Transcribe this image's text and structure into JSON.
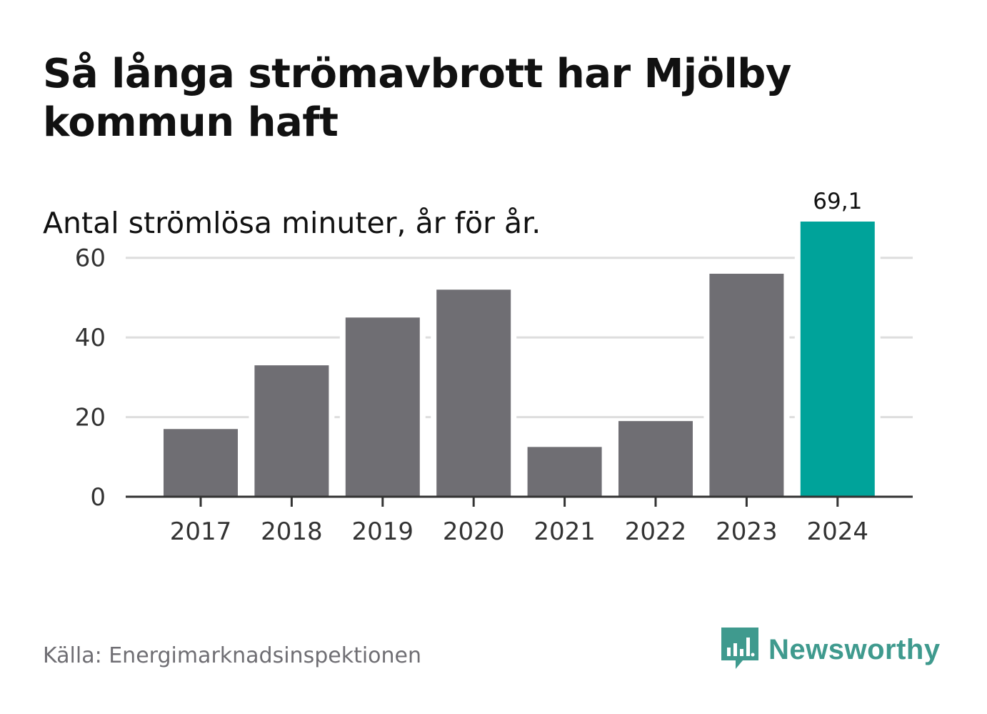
{
  "title": "Så långa strömavbrott har Mjölby kommun haft",
  "subtitle": "Antal strömlösa minuter, år för år.",
  "source": "Källa: Energimarknadsinspektionen",
  "brand": {
    "name": "Newsworthy",
    "icon": "newsworthy-chart-bubble-icon",
    "color": "#3f9a8e"
  },
  "colors": {
    "bar_default": "#6f6e73",
    "bar_highlight": "#00a39a",
    "grid": "#dddddd",
    "axis": "#333333",
    "tick_text": "#333333"
  },
  "chart_data": {
    "type": "bar",
    "title": "Så långa strömavbrott har Mjölby kommun haft",
    "subtitle": "Antal strömlösa minuter, år för år.",
    "xlabel": "",
    "ylabel": "",
    "categories": [
      "2017",
      "2018",
      "2019",
      "2020",
      "2021",
      "2022",
      "2023",
      "2024"
    ],
    "values": [
      17,
      33,
      45,
      52,
      12.5,
      19,
      56,
      69.1
    ],
    "ylim": [
      0,
      70
    ],
    "yticks": [
      0,
      20,
      40,
      60
    ],
    "grid": true,
    "highlight_index": 7,
    "data_labels": [
      {
        "index": 7,
        "text": "69,1"
      }
    ]
  }
}
